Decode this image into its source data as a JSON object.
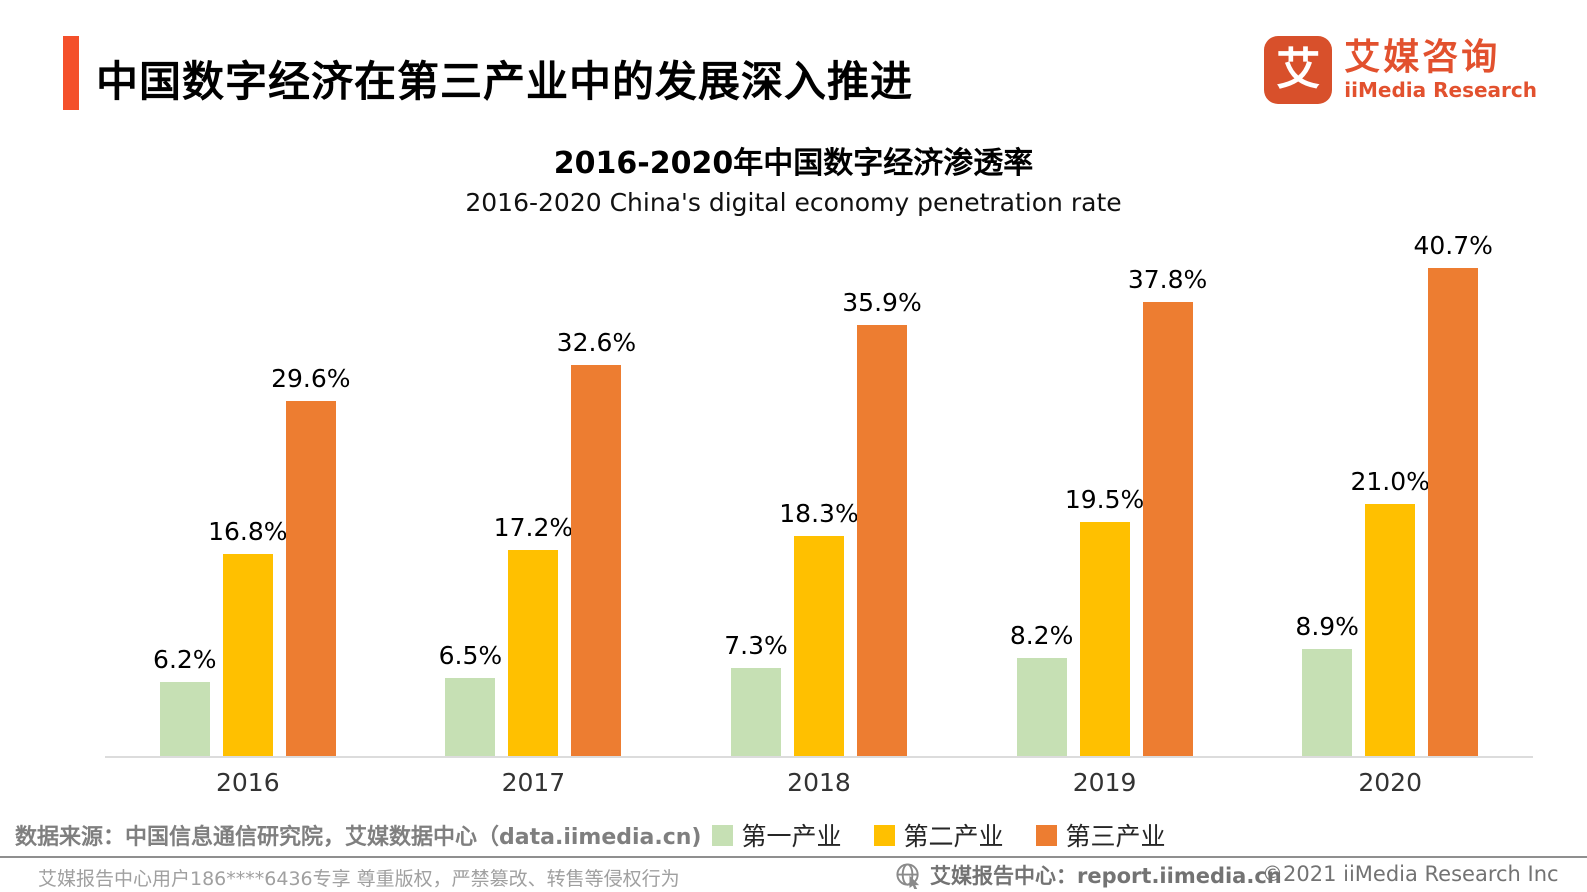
{
  "header": {
    "title": "中国数字经济在第三产业中的发展深入推进",
    "logo": {
      "glyph": "艾",
      "name_cn": "艾媒咨询",
      "name_en": "iiMedia Research"
    }
  },
  "chart_data": {
    "type": "bar",
    "title": "2016-2020年中国数字经济渗透率",
    "subtitle": "2016-2020 China's digital economy penetration rate",
    "categories": [
      "2016",
      "2017",
      "2018",
      "2019",
      "2020"
    ],
    "series": [
      {
        "name": "第一产业",
        "color": "#c6e0b4",
        "values": [
          6.2,
          6.5,
          7.3,
          8.2,
          8.9
        ]
      },
      {
        "name": "第二产业",
        "color": "#ffc000",
        "values": [
          16.8,
          17.2,
          18.3,
          19.5,
          21.0
        ]
      },
      {
        "name": "第三产业",
        "color": "#ed7d31",
        "values": [
          29.6,
          32.6,
          35.9,
          37.8,
          40.7
        ]
      }
    ],
    "label_format": "{value}%",
    "ylim": [
      0,
      44
    ],
    "grid": false,
    "legend_position": "bottom",
    "axis_color": "#dcdcdc"
  },
  "source": {
    "label": "数据来源：中国信息通信研究院，艾媒数据中心（data.iimedia.cn)"
  },
  "footer": {
    "left": "艾媒报告中心用户186****6436专享 尊重版权，严禁篡改、转售等侵权行为",
    "center": "艾媒报告中心：report.iimedia.cn",
    "right": "©2021  iiMedia Research  Inc"
  }
}
